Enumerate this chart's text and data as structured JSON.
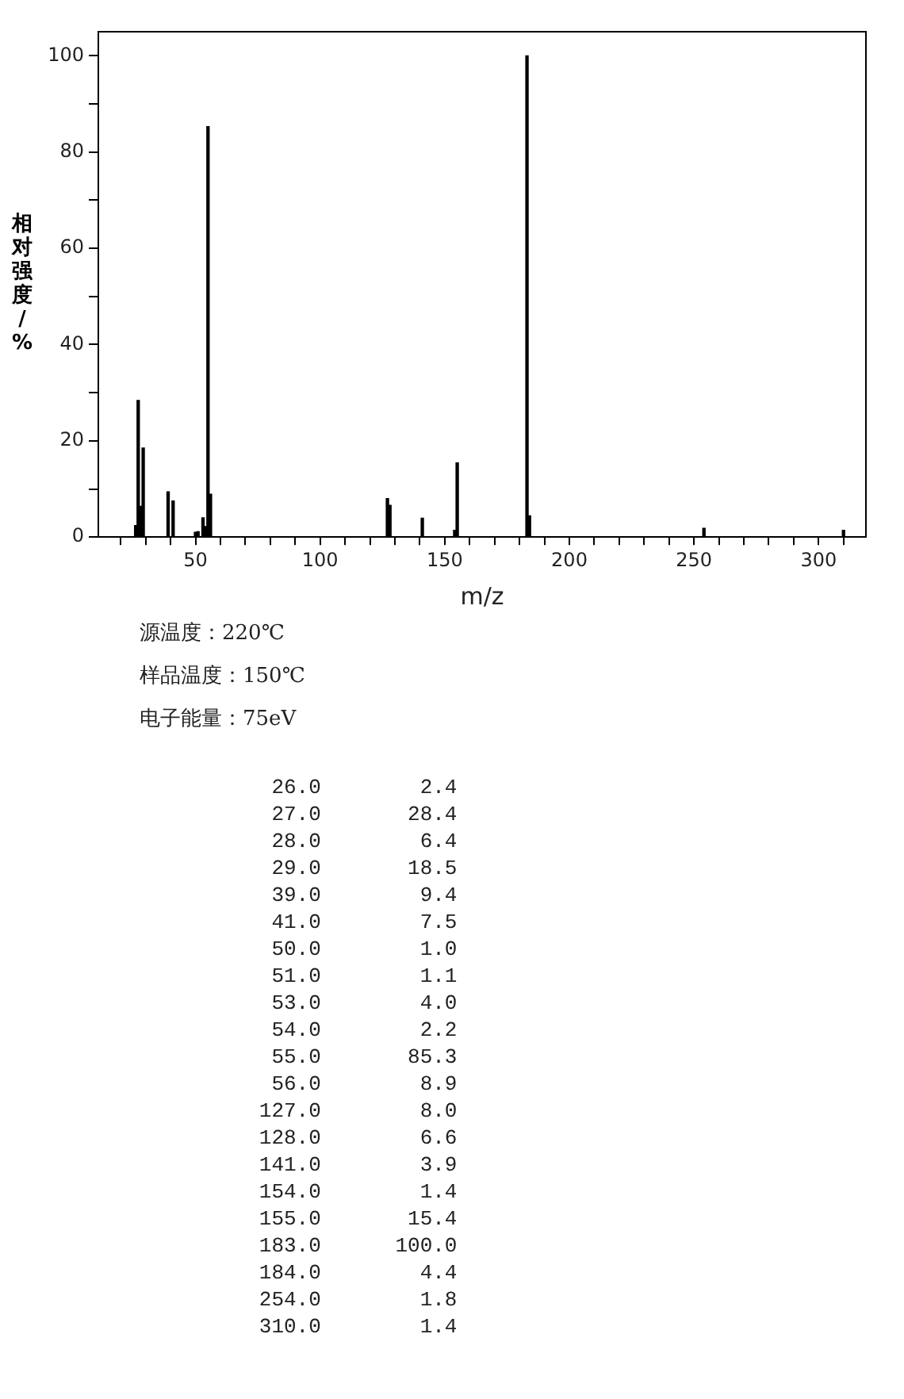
{
  "chart_data": {
    "type": "bar",
    "xlabel": "m/z",
    "ylabel": "相对强度/%",
    "x": [
      26,
      27,
      28,
      29,
      39,
      41,
      50,
      51,
      53,
      54,
      55,
      56,
      127,
      128,
      141,
      154,
      155,
      183,
      184,
      254,
      310
    ],
    "values": [
      2.4,
      28.4,
      6.4,
      18.5,
      9.4,
      7.5,
      1.0,
      1.1,
      4.0,
      2.2,
      85.3,
      8.9,
      8.0,
      6.6,
      3.9,
      1.4,
      15.4,
      100.0,
      4.4,
      1.8,
      1.4
    ],
    "color": "#000000",
    "xlim": [
      11,
      319
    ],
    "xticks": [
      {
        "value": 20,
        "label": null
      },
      {
        "value": 30,
        "label": null
      },
      {
        "value": 40,
        "label": null
      },
      50,
      {
        "value": 60,
        "label": null
      },
      {
        "value": 70,
        "label": null
      },
      {
        "value": 80,
        "label": null
      },
      {
        "value": 90,
        "label": null
      },
      100,
      {
        "value": 110,
        "label": null
      },
      {
        "value": 120,
        "label": null
      },
      {
        "value": 130,
        "label": null
      },
      {
        "value": 140,
        "label": null
      },
      150,
      {
        "value": 160,
        "label": null
      },
      {
        "value": 170,
        "label": null
      },
      {
        "value": 180,
        "label": null
      },
      {
        "value": 190,
        "label": null
      },
      200,
      {
        "value": 210,
        "label": null
      },
      {
        "value": 220,
        "label": null
      },
      {
        "value": 230,
        "label": null
      },
      {
        "value": 240,
        "label": null
      },
      250,
      {
        "value": 260,
        "label": null
      },
      {
        "value": 270,
        "label": null
      },
      {
        "value": 280,
        "label": null
      },
      {
        "value": 290,
        "label": null
      },
      300,
      {
        "value": 310,
        "label": null
      }
    ],
    "ylim": [
      0,
      105
    ],
    "yticks": [
      0,
      {
        "value": 10,
        "label": null
      },
      20,
      {
        "value": 30,
        "label": null
      },
      40,
      {
        "value": 50,
        "label": null
      },
      60,
      {
        "value": 70,
        "label": null
      },
      80,
      {
        "value": 90,
        "label": null
      },
      100
    ],
    "grid": false,
    "legend": false,
    "annotations": [
      "源温度：220℃",
      "样品温度：150℃",
      "电子能量：75eV",
      "26.0 2.4",
      "27.0 28.4",
      "28.0 6.4",
      "29.0 18.5",
      "39.0 9.4",
      "41.0 7.5",
      "50.0 1.0",
      "51.0 1.1",
      "53.0 4.0",
      "54.0 2.2",
      "55.0 85.3",
      "56.0 8.9",
      "127.0 8.0",
      "128.0 6.6",
      "141.0 3.9",
      "154.0 1.4",
      "155.0 15.4",
      "183.0 100.0",
      "184.0 4.4",
      "254.0 1.8",
      "310.0 1.4"
    ]
  }
}
